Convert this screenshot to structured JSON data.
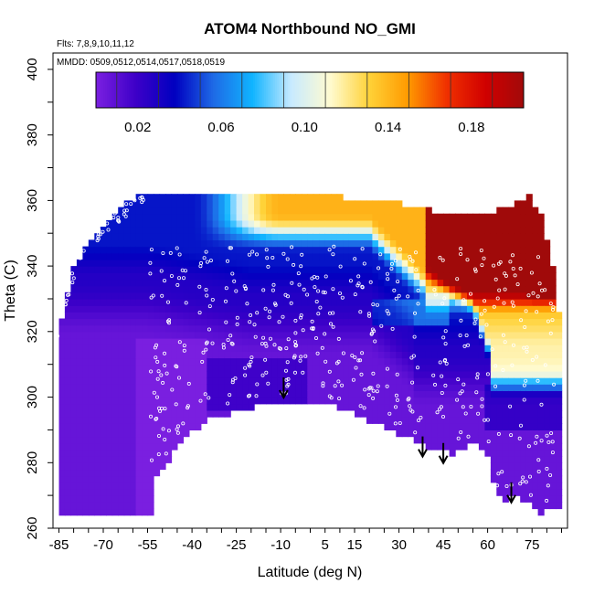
{
  "chart_data": {
    "type": "heatmap",
    "title": "ATOM4 Northbound NO_GMI",
    "subtitle": "Flts: 7,8,9,10,11,12",
    "annotation": "MMDD: 0509,0512,0514,0517,0518,0519",
    "xlabel": "Latitude (deg N)",
    "ylabel": "Theta (C)",
    "xlim": [
      -87,
      87
    ],
    "ylim": [
      260,
      405
    ],
    "x_ticks": [
      "-85",
      "-70",
      "-55",
      "-40",
      "-25",
      "-10",
      "5",
      "15",
      "30",
      "45",
      "60",
      "75"
    ],
    "x_tick_values": [
      -85,
      -70,
      -55,
      -40,
      -25,
      -10,
      5,
      15,
      30,
      45,
      60,
      75
    ],
    "y_ticks": [
      "260",
      "280",
      "300",
      "320",
      "340",
      "360",
      "380",
      "400"
    ],
    "y_tick_values": [
      260,
      280,
      300,
      320,
      340,
      360,
      380,
      400
    ],
    "colorbar": {
      "range": [
        0.0,
        0.205
      ],
      "tick_labels": [
        "0.02",
        "0.06",
        "0.10",
        "0.14",
        "0.18"
      ],
      "tick_values": [
        0.02,
        0.06,
        0.1,
        0.14,
        0.18
      ],
      "colors": [
        "#7a1fe0",
        "#3d00c8",
        "#0000c0",
        "#1e6ae6",
        "#10b4ff",
        "#c8eaff",
        "#fffbd0",
        "#ffd238",
        "#ff9a00",
        "#f03000",
        "#d00000",
        "#a00a0a"
      ]
    },
    "bottom_boundary": [
      [
        -85,
        265
      ],
      [
        -53,
        265
      ],
      [
        -53,
        274
      ],
      [
        -43,
        287
      ],
      [
        -33,
        295
      ],
      [
        -27,
        295
      ],
      [
        -20,
        297
      ],
      [
        -10,
        299
      ],
      [
        0,
        299
      ],
      [
        10,
        297
      ],
      [
        20,
        293
      ],
      [
        30,
        289
      ],
      [
        40,
        285
      ],
      [
        48,
        283
      ],
      [
        56,
        286
      ],
      [
        60,
        282
      ],
      [
        62,
        275
      ],
      [
        65,
        267
      ],
      [
        68,
        271
      ],
      [
        74,
        268
      ],
      [
        78,
        265
      ],
      [
        84,
        267
      ]
    ],
    "top_boundary": [
      [
        -85,
        320
      ],
      [
        -80,
        340
      ],
      [
        -73,
        350
      ],
      [
        -65,
        357
      ],
      [
        -58,
        362
      ],
      [
        -50,
        362
      ],
      [
        0,
        362
      ],
      [
        30,
        359
      ],
      [
        50,
        355
      ],
      [
        60,
        356
      ],
      [
        70,
        359
      ],
      [
        74,
        361
      ],
      [
        78,
        355
      ],
      [
        82,
        340
      ],
      [
        85,
        320
      ],
      [
        85,
        300
      ]
    ],
    "arrows_latitude": [
      -9,
      38,
      45,
      68
    ],
    "cell_size": {
      "dx": 2,
      "dy": 2
    }
  }
}
